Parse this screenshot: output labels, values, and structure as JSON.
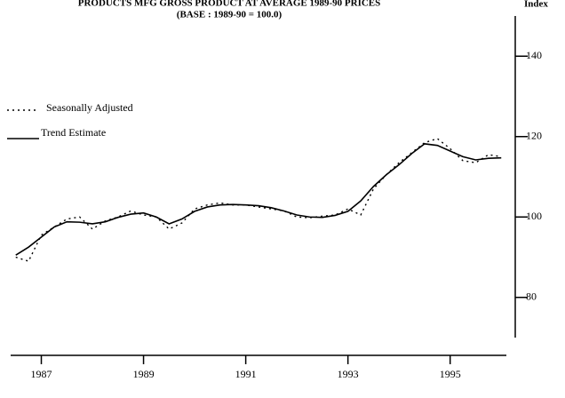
{
  "chart_data": {
    "type": "line",
    "title": "PRODUCTS MFG GROSS PRODUCT AT AVERAGE 1989-90 PRICES",
    "subtitle": "(BASE : 1989-90 = 100.0)",
    "y_axis_label": "Index",
    "x": [
      1986.5,
      1986.75,
      1987,
      1987.25,
      1987.5,
      1987.75,
      1988,
      1988.25,
      1988.5,
      1988.75,
      1989,
      1989.25,
      1989.5,
      1989.75,
      1990,
      1990.25,
      1990.5,
      1990.75,
      1991,
      1991.25,
      1991.5,
      1991.75,
      1992,
      1992.25,
      1992.5,
      1992.75,
      1993,
      1993.25,
      1993.5,
      1993.75,
      1994,
      1994.25,
      1994.5,
      1994.75,
      1995,
      1995.25,
      1995.5,
      1995.75,
      1996
    ],
    "series": [
      {
        "name": "Seasonally Adjusted",
        "color": "#000000",
        "dash": "dotted",
        "values": [
          90,
          89,
          95.5,
          97.5,
          99.5,
          100,
          97,
          99,
          100,
          101.5,
          100.5,
          100,
          97,
          98.5,
          102,
          103,
          103.5,
          103,
          103,
          102.5,
          102,
          101.5,
          100,
          99.8,
          100.2,
          100.5,
          102,
          100.5,
          107,
          110.5,
          113.5,
          116,
          118.5,
          119.5,
          117,
          114,
          113.5,
          115.5,
          115
        ]
      },
      {
        "name": "Trend Estimate",
        "color": "#000000",
        "dash": "solid",
        "values": [
          90.5,
          92.5,
          95,
          97.5,
          98.8,
          98.7,
          98.3,
          98.8,
          99.9,
          100.7,
          101,
          100,
          98.3,
          99.5,
          101.4,
          102.5,
          103,
          103.1,
          103,
          102.8,
          102.3,
          101.5,
          100.5,
          100,
          99.9,
          100.4,
          101.4,
          104,
          107.6,
          110.5,
          113,
          115.8,
          118.2,
          117.8,
          116.4,
          115,
          114.2,
          114.6,
          114.7
        ]
      }
    ],
    "xlim": [
      1986.4,
      1996.1
    ],
    "xticks": [
      1987,
      1989,
      1991,
      1993,
      1995
    ],
    "ylim": [
      70,
      150
    ],
    "yticks": [
      80,
      100,
      120,
      140
    ],
    "legend": "upper left"
  }
}
